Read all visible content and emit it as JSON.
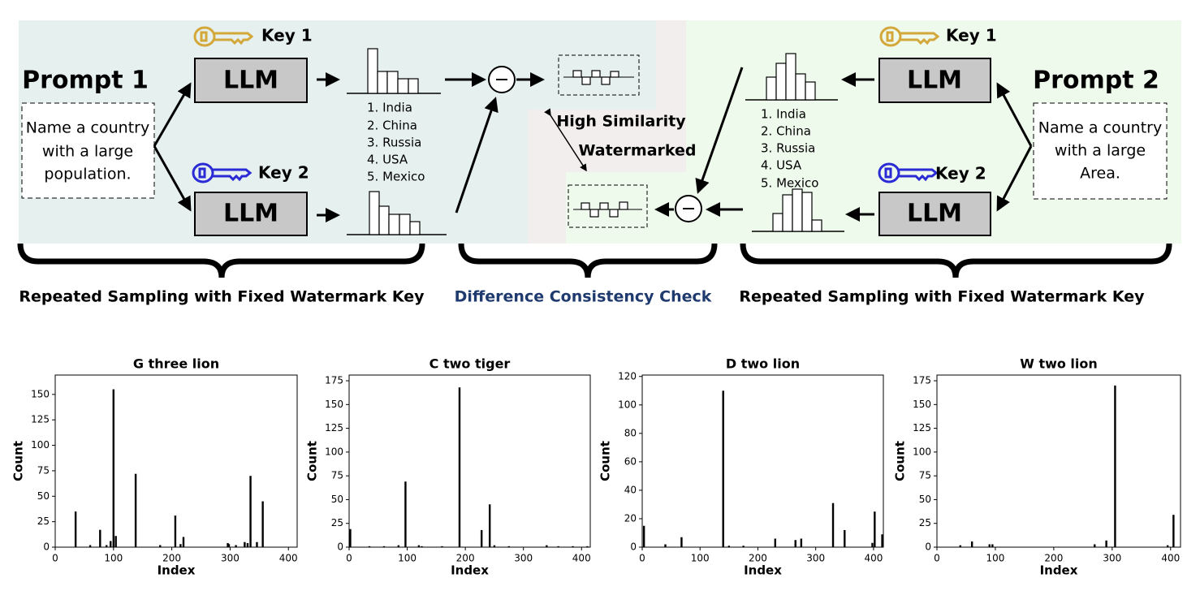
{
  "diagram": {
    "prompt_1": {
      "title": "Prompt 1",
      "text": [
        "Name a country",
        "with a large",
        "population."
      ]
    },
    "prompt_2": {
      "title": "Prompt 2",
      "text": [
        "Name a country",
        "with a large",
        "Area."
      ]
    },
    "keys": [
      "Key 1",
      "Key 2",
      "Key 1",
      "Key 2"
    ],
    "llm": [
      "LLM",
      "LLM",
      "LLM",
      "LLM"
    ],
    "list_1": [
      "1. India",
      "2. China",
      "3. Russia",
      "4. USA",
      "5. Mexico"
    ],
    "list_2": [
      "1. India",
      "2. China",
      "3. Russia",
      "4. USA",
      "5. Mexico"
    ],
    "similarity": [
      "High Similarity",
      "Watermarked"
    ],
    "captions": [
      "Repeated Sampling with Fixed Watermark Key",
      "Difference Consistency Check",
      "Repeated Sampling with Fixed Watermark Key"
    ]
  },
  "chart_data": [
    {
      "type": "bar",
      "title": "G three lion",
      "x_label": "Index",
      "y_label": "Count",
      "color": "#000000",
      "x": [
        35,
        60,
        77,
        88,
        95,
        100,
        104,
        138,
        180,
        206,
        215,
        220,
        296,
        298,
        310,
        325,
        330,
        335,
        346,
        356
      ],
      "values": [
        35,
        2,
        17,
        2,
        6,
        155,
        11,
        72,
        2,
        31,
        3,
        10,
        4,
        3,
        2,
        5,
        4,
        70,
        5,
        45
      ],
      "xlim": [
        0,
        415
      ],
      "ylim": [
        0,
        169
      ],
      "xticks": [
        0,
        100,
        200,
        300,
        400
      ],
      "yticks": [
        0,
        25,
        50,
        75,
        100,
        125,
        150
      ],
      "grid": false
    },
    {
      "type": "bar",
      "title": "C two tiger",
      "x_label": "Index",
      "y_label": "Count",
      "color": "#000000",
      "x": [
        2,
        35,
        60,
        85,
        97,
        120,
        125,
        160,
        190,
        228,
        242,
        250,
        275,
        340,
        360,
        385,
        410
      ],
      "values": [
        19,
        1,
        1,
        2,
        69,
        2,
        1,
        1,
        168,
        18,
        45,
        2,
        1,
        2,
        1,
        1,
        1
      ],
      "xlim": [
        0,
        415
      ],
      "ylim": [
        0,
        181
      ],
      "xticks": [
        0,
        100,
        200,
        300,
        400
      ],
      "yticks": [
        0,
        25,
        50,
        75,
        100,
        125,
        150,
        175
      ],
      "grid": false
    },
    {
      "type": "bar",
      "title": "D two lion",
      "x_label": "Index",
      "y_label": "Count",
      "color": "#000000",
      "x": [
        3,
        40,
        68,
        140,
        150,
        175,
        230,
        265,
        275,
        330,
        350,
        398,
        402,
        415
      ],
      "values": [
        15,
        2,
        7,
        110,
        1,
        1,
        6,
        5,
        6,
        31,
        12,
        3,
        25,
        9
      ],
      "xlim": [
        0,
        417
      ],
      "ylim": [
        0,
        121
      ],
      "xticks": [
        0,
        100,
        200,
        300,
        400
      ],
      "yticks": [
        0,
        20,
        40,
        60,
        80,
        100,
        120
      ],
      "grid": false
    },
    {
      "type": "bar",
      "title": "W two lion",
      "x_label": "Index",
      "y_label": "Count",
      "color": "#000000",
      "x": [
        40,
        60,
        90,
        95,
        270,
        290,
        305,
        395,
        405
      ],
      "values": [
        2,
        6,
        3,
        3,
        3,
        7,
        170,
        2,
        34
      ],
      "xlim": [
        0,
        417
      ],
      "ylim": [
        0,
        181
      ],
      "xticks": [
        0,
        100,
        200,
        300,
        400
      ],
      "yticks": [
        0,
        25,
        50,
        75,
        100,
        125,
        150,
        175
      ],
      "grid": false
    }
  ]
}
